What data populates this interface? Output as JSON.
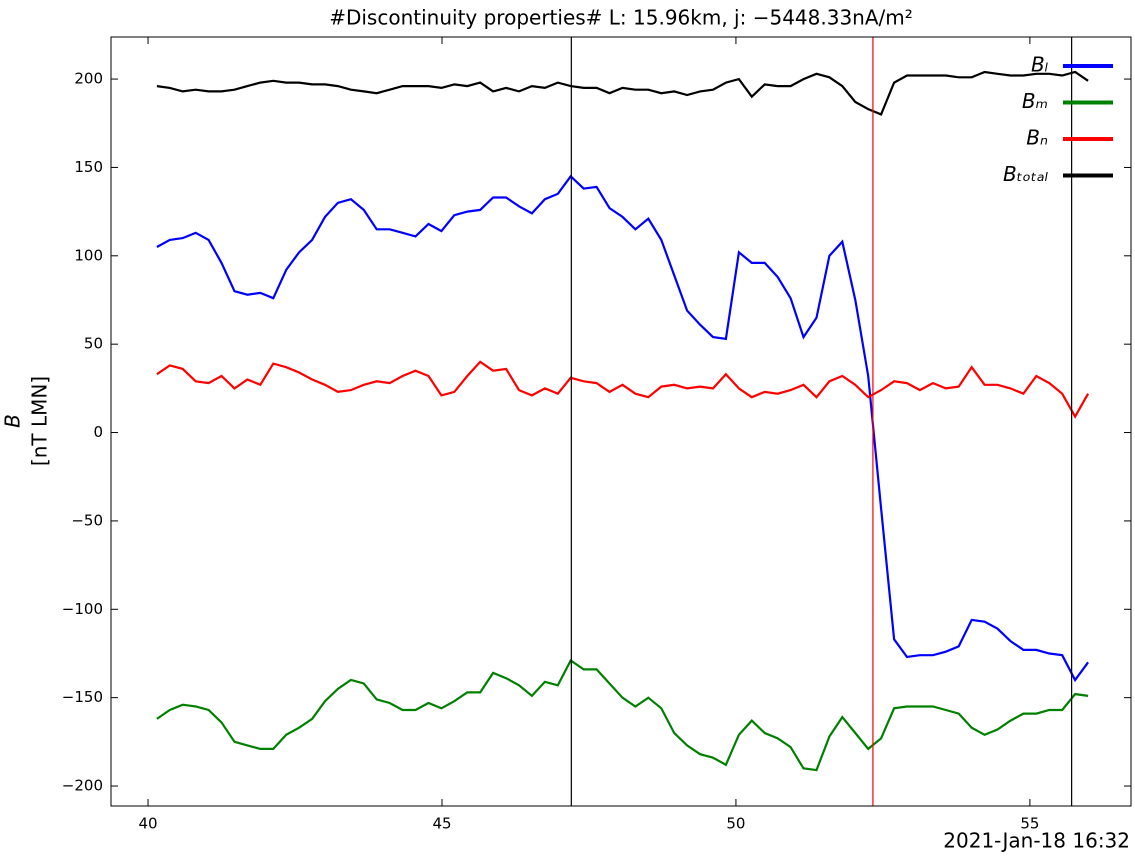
{
  "chart_data": {
    "type": "line",
    "title": "#Discontinuity properties# L: 15.96km, j: −5448.33nA/m²",
    "ylabel": [
      "B",
      "[nT LMN]"
    ],
    "xlabel": "2021-Jan-18 16:32",
    "x": [
      40.15,
      40.37,
      40.59,
      40.81,
      41.03,
      41.25,
      41.47,
      41.69,
      41.91,
      42.13,
      42.35,
      42.57,
      42.79,
      43.01,
      43.23,
      43.45,
      43.67,
      43.89,
      44.11,
      44.33,
      44.55,
      44.77,
      44.99,
      45.21,
      45.43,
      45.65,
      45.87,
      46.09,
      46.31,
      46.53,
      46.75,
      46.97,
      47.19,
      47.41,
      47.63,
      47.85,
      48.07,
      48.29,
      48.51,
      48.73,
      48.95,
      49.17,
      49.39,
      49.61,
      49.83,
      50.05,
      50.27,
      50.49,
      50.71,
      50.93,
      51.15,
      51.37,
      51.59,
      51.81,
      52.03,
      52.25,
      52.47,
      52.69,
      52.91,
      53.13,
      53.35,
      53.57,
      53.79,
      54.01,
      54.23,
      54.45,
      54.67,
      54.89,
      55.11,
      55.33,
      55.55,
      55.77,
      55.99
    ],
    "series": [
      {
        "name": "Bₗ",
        "color": "#0000ff",
        "values": [
          105,
          109,
          110,
          113,
          109,
          96,
          80,
          78,
          79,
          76,
          92,
          102,
          109,
          122,
          130,
          132,
          126,
          115,
          115,
          113,
          111,
          118,
          114,
          123,
          125,
          126,
          133,
          133,
          128,
          124,
          132,
          135,
          145,
          138,
          139,
          127,
          122,
          115,
          121,
          109,
          89,
          69,
          61,
          54,
          53,
          102,
          96,
          96,
          88,
          76,
          54,
          65,
          100,
          108,
          75,
          32,
          -43,
          -117,
          -127,
          -126,
          -126,
          -124,
          -121,
          -106,
          -107,
          -111,
          -118,
          -123,
          -123,
          -125,
          -126,
          -140,
          -130
        ]
      },
      {
        "name": "Bₘ",
        "color": "#008000",
        "values": [
          -162,
          -157,
          -154,
          -155,
          -157,
          -164,
          -175,
          -177,
          -179,
          -179,
          -171,
          -167,
          -162,
          -152,
          -145,
          -140,
          -142,
          -151,
          -153,
          -157,
          -157,
          -153,
          -156,
          -152,
          -147,
          -147,
          -136,
          -139,
          -143,
          -149,
          -141,
          -143,
          -129,
          -134,
          -134,
          -142,
          -150,
          -155,
          -150,
          -156,
          -170,
          -177,
          -182,
          -184,
          -188,
          -171,
          -163,
          -170,
          -173,
          -178,
          -190,
          -191,
          -172,
          -161,
          -170,
          -179,
          -173,
          -156,
          -155,
          -155,
          -155,
          -157,
          -159,
          -167,
          -171,
          -168,
          -163,
          -159,
          -159,
          -157,
          -157,
          -148,
          -149
        ]
      },
      {
        "name": "Bₙ",
        "color": "#ff0000",
        "values": [
          33,
          38,
          36,
          29,
          28,
          32,
          25,
          30,
          27,
          39,
          37,
          34,
          30,
          27,
          23,
          24,
          27,
          29,
          28,
          32,
          35,
          32,
          21,
          23,
          32,
          40,
          35,
          36,
          24,
          21,
          25,
          22,
          31,
          29,
          28,
          23,
          27,
          22,
          20,
          26,
          27,
          25,
          26,
          25,
          33,
          25,
          20,
          23,
          22,
          24,
          27,
          20,
          29,
          32,
          27,
          20,
          24,
          29,
          28,
          24,
          28,
          25,
          26,
          37,
          27,
          27,
          25,
          22,
          32,
          28,
          22,
          9,
          22
        ]
      },
      {
        "name": "Bₜₒₜₐₗ",
        "color": "#000000",
        "values": [
          196,
          195,
          193,
          194,
          193,
          193,
          194,
          196,
          198,
          199,
          198,
          198,
          197,
          197,
          196,
          194,
          193,
          192,
          194,
          196,
          196,
          196,
          195,
          197,
          196,
          198,
          193,
          195,
          193,
          196,
          195,
          198,
          196,
          195,
          195,
          192,
          195,
          194,
          194,
          192,
          193,
          191,
          193,
          194,
          198,
          200,
          190,
          197,
          196,
          196,
          200,
          203,
          201,
          196,
          187,
          183,
          180,
          198,
          202,
          202,
          202,
          202,
          201,
          201,
          204,
          203,
          202,
          202,
          203,
          203,
          202,
          204,
          199
        ]
      }
    ],
    "vlines": [
      {
        "x": 47.2,
        "color": "#000000"
      },
      {
        "x": 52.33,
        "color": "#ff0000"
      },
      {
        "x": 55.71,
        "color": "#000000"
      }
    ],
    "xlim": [
      39.37,
      56.72
    ],
    "xticks": [
      40,
      45,
      50,
      55
    ],
    "ylim": [
      -211.3,
      223.8
    ],
    "yticks": [
      {
        "value": -200,
        "label": "−200"
      },
      {
        "value": -150,
        "label": "−150"
      },
      {
        "value": -100,
        "label": "−100"
      },
      {
        "value": -50,
        "label": "−50"
      },
      0,
      50,
      100,
      150,
      200
    ],
    "legend": "upper right"
  }
}
